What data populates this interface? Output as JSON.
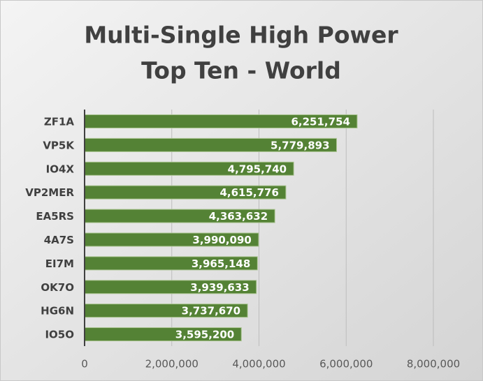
{
  "chart_data": {
    "type": "bar",
    "orientation": "horizontal",
    "title": [
      "Multi-Single High Power",
      "Top Ten - World"
    ],
    "categories": [
      "ZF1A",
      "VP5K",
      "IO4X",
      "VP2MER",
      "EA5RS",
      "4A7S",
      "EI7M",
      "OK7O",
      "HG6N",
      "IO5O"
    ],
    "values": [
      6251754,
      5779893,
      4795740,
      4615776,
      4363632,
      3990090,
      3965148,
      3939633,
      3737670,
      3595200
    ],
    "value_labels": [
      "6,251,754",
      "5,779,893",
      "4,795,740",
      "4,615,776",
      "4,363,632",
      "3,990,090",
      "3,965,148",
      "3,939,633",
      "3,737,670",
      "3,595,200"
    ],
    "color": "#548235",
    "xlim": [
      0,
      8000000
    ],
    "xticks": [
      0,
      {
        "value": 2000000,
        "label": "2,000,000"
      },
      {
        "value": 4000000,
        "label": "4,000,000"
      },
      {
        "value": 6000000,
        "label": "6,000,000"
      },
      {
        "value": 8000000,
        "label": "8,000,000"
      }
    ],
    "grid": true
  }
}
